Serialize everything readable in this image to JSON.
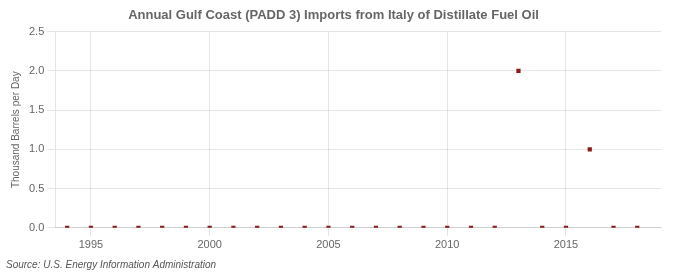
{
  "chart_data": {
    "type": "scatter",
    "title": "Annual Gulf Coast (PADD 3) Imports from Italy of Distillate Fuel Oil",
    "ylabel": "Thousand Barrels per Day",
    "annotations": [
      "Source: U.S. Energy Information Administration"
    ],
    "x": [
      1994,
      1995,
      1996,
      1997,
      1998,
      1999,
      2000,
      2001,
      2002,
      2003,
      2004,
      2005,
      2006,
      2007,
      2008,
      2009,
      2010,
      2011,
      2012,
      2013,
      2014,
      2015,
      2016,
      2017,
      2018
    ],
    "values": [
      0.0,
      0.0,
      0.0,
      0.0,
      0.0,
      0.0,
      0.0,
      0.0,
      0.0,
      0.0,
      0.0,
      0.0,
      0.0,
      0.0,
      0.0,
      0.0,
      0.0,
      0.0,
      0.0,
      2.0,
      0.0,
      0.0,
      1.0,
      0.0,
      0.0
    ],
    "color": "#8b1a1a",
    "marker": "square",
    "xlim": [
      1993.5,
      2019
    ],
    "ylim": [
      0.0,
      2.5
    ],
    "xticks": [
      1995,
      2000,
      2005,
      2010,
      2015
    ],
    "yticks": [
      {
        "value": 0.0,
        "label": "0.0"
      },
      0.5,
      {
        "value": 1.0,
        "label": "1.0"
      },
      1.5,
      {
        "value": 2.0,
        "label": "2.0"
      },
      2.5
    ],
    "grid": true
  }
}
